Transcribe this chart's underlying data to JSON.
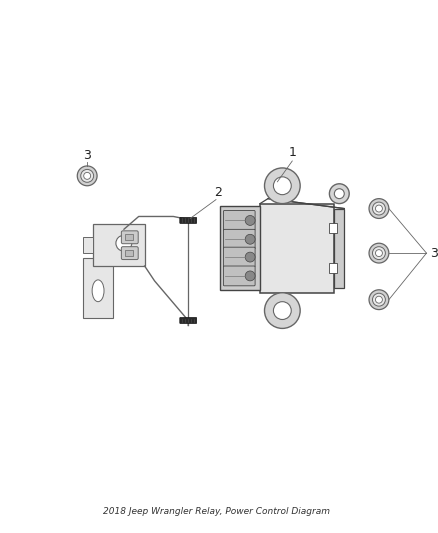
{
  "background_color": "#ffffff",
  "lc": "#666666",
  "dc": "#444444",
  "fc_light": "#e6e6e6",
  "fc_mid": "#cccccc",
  "fc_dark": "#aaaaaa",
  "bolt_color": "#222222",
  "title": "2018 Jeep Wrangler Relay, Power Control Diagram",
  "label_1": "1",
  "label_2": "2",
  "label_3": "3",
  "figsize": [
    4.38,
    5.33
  ],
  "dpi": 100
}
